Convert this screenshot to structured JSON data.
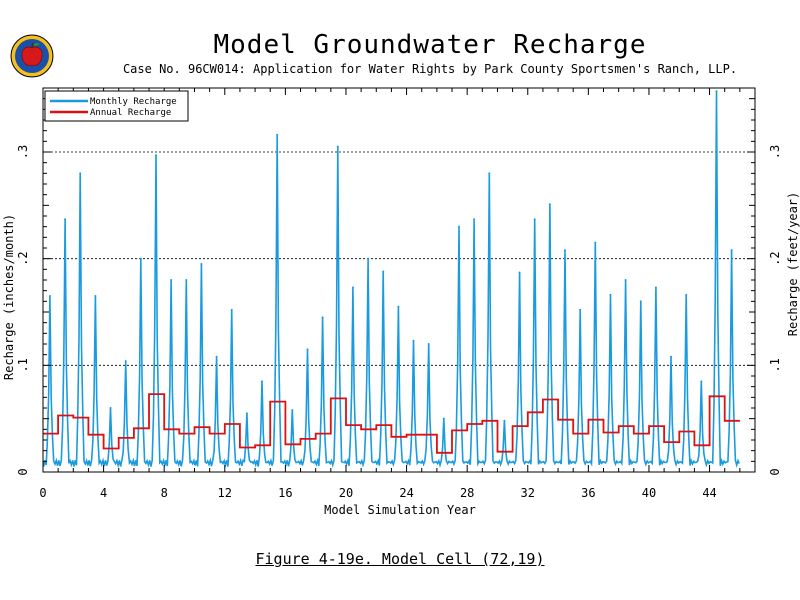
{
  "header": {
    "title": "Model Groundwater Recharge",
    "subtitle": "Case No. 96CW014: Application for Water Rights by Park County Sportsmen's Ranch, LLP.",
    "caption": "Figure 4-19e.  Model Cell (72,19)"
  },
  "chart_data": {
    "type": "line",
    "title": "Model Groundwater Recharge",
    "xlabel": "Model Simulation Year",
    "ylabel": "Recharge (inches/month)",
    "ylabel_right": "Recharge (feet/year)",
    "xlim": [
      0,
      47
    ],
    "ylim": [
      0,
      0.36
    ],
    "x_ticks": [
      0,
      4,
      8,
      12,
      16,
      20,
      24,
      28,
      32,
      36,
      40,
      44
    ],
    "x_tick_labels": [
      "0",
      "4",
      "8",
      "12",
      "16",
      "20",
      "24",
      "28",
      "32",
      "36",
      "40",
      "44"
    ],
    "y_ticks": [
      0,
      0.1,
      0.2,
      0.3
    ],
    "y_tick_labels": [
      "0",
      ".1",
      ".2",
      ".3"
    ],
    "y_tick_labels_right": [
      "0",
      ".1",
      ".2",
      ".3"
    ],
    "grid": "dashed horizontal lines at .1, .2, .3",
    "legend": "top-left",
    "series": [
      {
        "name": "Monthly Recharge",
        "color": "#1a9be0",
        "annual_peaks": [
          0.165,
          0.237,
          0.28,
          0.165,
          0.06,
          0.104,
          0.2,
          0.297,
          0.18,
          0.18,
          0.195,
          0.108,
          0.152,
          0.055,
          0.085,
          0.316,
          0.058,
          0.115,
          0.145,
          0.305,
          0.173,
          0.2,
          0.188,
          0.155,
          0.123,
          0.12,
          0.05,
          0.23,
          0.237,
          0.28,
          0.048,
          0.187,
          0.237,
          0.251,
          0.208,
          0.152,
          0.215,
          0.166,
          0.18,
          0.16,
          0.173,
          0.108,
          0.166,
          0.085,
          0.357,
          0.208
        ]
      },
      {
        "name": "Annual Recharge",
        "color": "#dd1111",
        "values": [
          0.036,
          0.053,
          0.051,
          0.035,
          0.022,
          0.032,
          0.041,
          0.073,
          0.04,
          0.036,
          0.042,
          0.036,
          0.045,
          0.023,
          0.025,
          0.066,
          0.026,
          0.031,
          0.036,
          0.069,
          0.044,
          0.04,
          0.044,
          0.033,
          0.035,
          0.035,
          0.018,
          0.039,
          0.045,
          0.048,
          0.019,
          0.043,
          0.056,
          0.068,
          0.049,
          0.036,
          0.049,
          0.037,
          0.043,
          0.036,
          0.043,
          0.028,
          0.038,
          0.025,
          0.071,
          0.048
        ]
      }
    ]
  }
}
